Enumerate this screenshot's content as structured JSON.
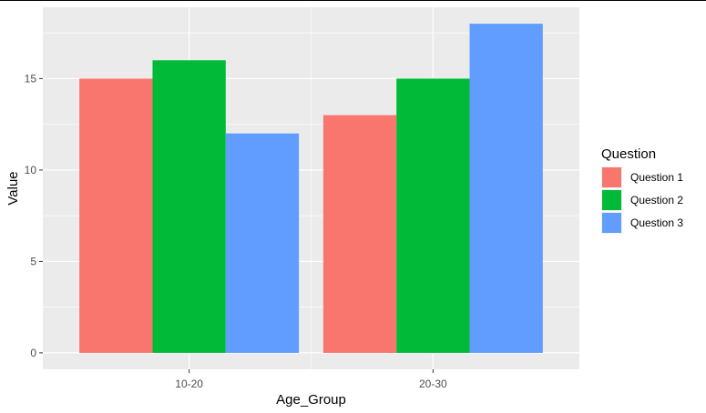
{
  "chart_data": {
    "type": "bar",
    "title": "",
    "xlabel": "Age_Group",
    "ylabel": "Value",
    "categories": [
      "10-20",
      "20-30"
    ],
    "series": [
      {
        "name": "Question 1",
        "values": [
          15,
          13
        ],
        "color": "#F8766D"
      },
      {
        "name": "Question 2",
        "values": [
          16,
          15
        ],
        "color": "#00BA38"
      },
      {
        "name": "Question 3",
        "values": [
          12,
          18
        ],
        "color": "#619CFF"
      }
    ],
    "y_ticks": [
      0,
      5,
      10,
      15
    ],
    "ylim": [
      -0.9,
      18.9
    ],
    "grid": true,
    "legend": {
      "title": "Question",
      "position": "right"
    },
    "colors": {
      "panel": "#EBEBEB",
      "grid": "#FFFFFF",
      "tick": "#4D4D4D"
    }
  }
}
